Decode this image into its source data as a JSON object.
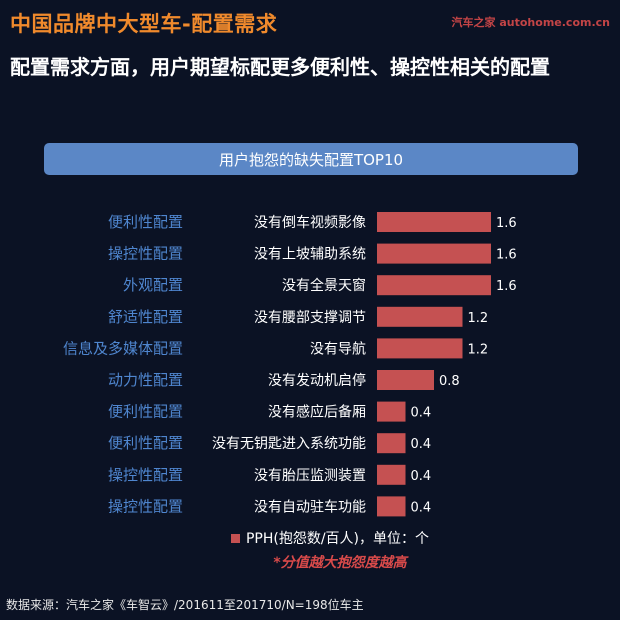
{
  "header": {
    "title": "中国品牌中大型车-配置需求",
    "watermark": "汽车之家 autohome.com.cn",
    "subtitle": "配置需求方面，用户期望标配更多便利性、操控性相关的配置"
  },
  "chart_data": {
    "type": "bar",
    "orientation": "horizontal",
    "title": "用户抱怨的缺失配置TOP10",
    "categories": [
      "没有倒车视频影像",
      "没有上坡辅助系统",
      "没有全景天窗",
      "没有腰部支撑调节",
      "没有导航",
      "没有发动机启停",
      "没有感应后备厢",
      "没有无钥匙进入系统功能",
      "没有胎压监测装置",
      "没有自动驻车功能"
    ],
    "groups": [
      "便利性配置",
      "操控性配置",
      "外观配置",
      "舒适性配置",
      "信息及多媒体配置",
      "动力性配置",
      "便利性配置",
      "便利性配置",
      "操控性配置",
      "操控性配置"
    ],
    "values": [
      1.6,
      1.6,
      1.6,
      1.2,
      1.2,
      0.8,
      0.4,
      0.4,
      0.4,
      0.4
    ],
    "value_labels": [
      "1.6",
      "1.6",
      "1.6",
      "1.2",
      "1.2",
      "0.8",
      "0.4",
      "0.4",
      "0.4",
      "0.4"
    ],
    "xlim": [
      0,
      1.6
    ],
    "grid": false,
    "legend_position": "bottom",
    "colors": {
      "bar": "#c55152",
      "group_label": "#4f86cf"
    }
  },
  "legend": {
    "label": "PPH(抱怨数/百人)，单位：个"
  },
  "note": "*分值越大抱怨度越高",
  "source": "数据来源：汽车之家《车智云》/201611至201710/N=198位车主"
}
